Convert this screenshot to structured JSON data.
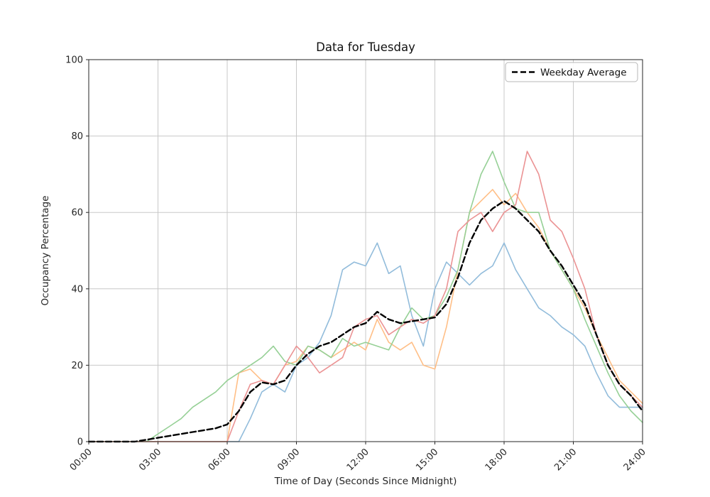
{
  "page": {
    "background": "#ffffff"
  },
  "chart_data": {
    "type": "line",
    "title": "Data for Tuesday",
    "xlabel": "Time of Day (Seconds Since Midnight)",
    "ylabel": "Occupancy Percentage",
    "xlim_hours": [
      0,
      24
    ],
    "ylim": [
      0,
      100
    ],
    "grid": true,
    "x_ticks_hours": [
      0,
      3,
      6,
      9,
      12,
      15,
      18,
      21,
      24
    ],
    "x_tick_labels": [
      "00:00",
      "03:00",
      "06:00",
      "09:00",
      "12:00",
      "15:00",
      "18:00",
      "21:00",
      "24:00"
    ],
    "y_ticks": [
      0,
      20,
      40,
      60,
      80,
      100
    ],
    "legend": {
      "position": "upper-right",
      "entries": [
        {
          "label": "Weekday Average",
          "line_style": "dashed",
          "color": "#000000"
        }
      ]
    },
    "x_hours": [
      0,
      0.5,
      1,
      1.5,
      2,
      2.5,
      3,
      3.5,
      4,
      4.5,
      5,
      5.5,
      6,
      6.5,
      7,
      7.5,
      8,
      8.5,
      9,
      9.5,
      10,
      10.5,
      11,
      11.5,
      12,
      12.5,
      13,
      13.5,
      14,
      14.5,
      15,
      15.5,
      16,
      16.5,
      17,
      17.5,
      18,
      18.5,
      19,
      19.5,
      20,
      20.5,
      21,
      21.5,
      22,
      22.5,
      23,
      23.5,
      24
    ],
    "series": [
      {
        "name": "day-line-blue",
        "color": "#92bcdb",
        "width": 1.6,
        "dash": "",
        "values": [
          0,
          0,
          0,
          0,
          0,
          0,
          0,
          0,
          0,
          0,
          0,
          0,
          0,
          0,
          6,
          13,
          15,
          13,
          20,
          22,
          26,
          33,
          45,
          47,
          46,
          52,
          44,
          46,
          33,
          25,
          40,
          47,
          44,
          41,
          44,
          46,
          52,
          45,
          40,
          35,
          33,
          30,
          28,
          25,
          18,
          12,
          9,
          9,
          9
        ]
      },
      {
        "name": "day-line-orange",
        "color": "#ffbf87",
        "width": 1.6,
        "dash": "",
        "values": [
          0,
          0,
          0,
          0,
          0,
          0,
          0,
          0,
          0,
          0,
          0,
          0,
          0,
          18,
          19,
          16,
          15,
          20,
          21,
          25,
          24,
          22,
          24,
          26,
          24,
          32,
          26,
          24,
          26,
          20,
          19,
          30,
          45,
          60,
          63,
          66,
          62,
          65,
          60,
          56,
          50,
          45,
          40,
          35,
          28,
          22,
          16,
          13,
          10
        ]
      },
      {
        "name": "day-line-green",
        "color": "#96d096",
        "width": 1.6,
        "dash": "",
        "values": [
          0,
          0,
          0,
          0,
          0,
          0,
          2,
          4,
          6,
          9,
          11,
          13,
          16,
          18,
          20,
          22,
          25,
          21,
          20,
          25,
          24,
          22,
          27,
          25,
          26,
          25,
          24,
          30,
          35,
          32,
          33,
          38,
          45,
          60,
          70,
          76,
          68,
          61,
          60,
          60,
          50,
          45,
          40,
          32,
          25,
          18,
          12,
          8,
          5
        ]
      },
      {
        "name": "day-line-red",
        "color": "#eb9394",
        "width": 1.6,
        "dash": "",
        "values": [
          0,
          0,
          0,
          0,
          0,
          0,
          0,
          0,
          0,
          0,
          0,
          0,
          0,
          8,
          15,
          16,
          15,
          20,
          25,
          22,
          18,
          20,
          22,
          30,
          32,
          33,
          28,
          30,
          32,
          31,
          33,
          40,
          55,
          58,
          60,
          55,
          60,
          62,
          76,
          70,
          58,
          55,
          48,
          40,
          28,
          20,
          15,
          12,
          9
        ]
      },
      {
        "name": "weekday-average",
        "label": "Weekday Average",
        "color": "#000000",
        "width": 2.4,
        "dash": "8 4",
        "values": [
          0,
          0,
          0,
          0,
          0,
          0.5,
          1,
          1.5,
          2,
          2.5,
          3,
          3.5,
          4.5,
          8,
          13,
          15.5,
          15,
          16,
          20,
          23,
          25,
          26,
          28,
          30,
          31,
          34,
          32,
          31,
          31.5,
          32,
          32.5,
          36,
          43,
          52,
          58,
          61,
          63,
          61,
          58,
          55,
          50,
          46,
          41,
          36,
          28,
          20,
          15,
          12,
          8
        ]
      }
    ]
  }
}
